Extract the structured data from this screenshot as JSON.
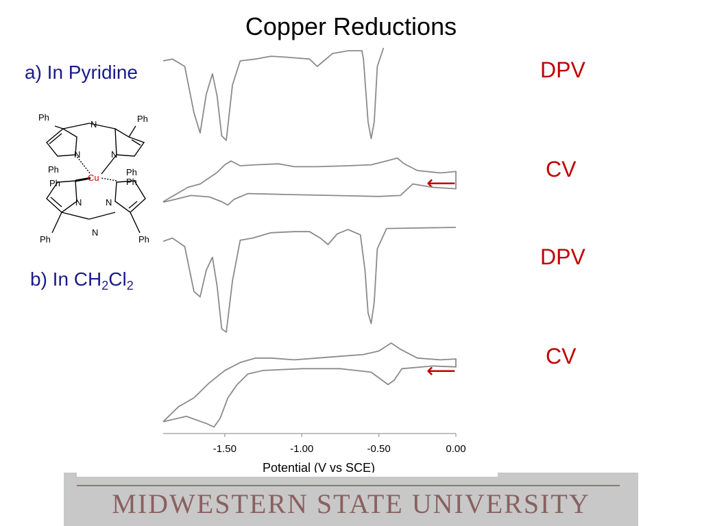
{
  "slide": {
    "title": "Copper Reductions",
    "cond_a": "a) In Pyridine",
    "cond_b_prefix": "b) In CH",
    "cond_b_sub1": "2",
    "cond_b_mid": "Cl",
    "cond_b_sub2": "2",
    "footer": "MIDWESTERN STATE UNIVERSITY"
  },
  "labels": {
    "dpv": "DPV",
    "cv": "CV",
    "arrow": "⟵"
  },
  "molecule": {
    "ph": "Ph",
    "n": "N",
    "cu": "Cu",
    "cu_color": "#cc0000"
  },
  "colors": {
    "trace": "#8a8a8a",
    "technique_label": "#c00000",
    "condition_label": "#1a1a8c"
  },
  "chart_data": {
    "type": "line",
    "xlabel": "Potential (V vs SCE)",
    "ylabel": "",
    "xlim": [
      -1.9,
      0.0
    ],
    "x_ticks": [
      -1.5,
      -1.0,
      -0.5,
      0.0
    ],
    "x_tick_labels": [
      "-1.50",
      "-1.00",
      "-0.50",
      "0.00"
    ],
    "panels": [
      {
        "condition": "a) In Pyridine",
        "technique": "DPV",
        "points": [
          [
            -1.9,
            0.86
          ],
          [
            -1.84,
            0.88
          ],
          [
            -1.76,
            0.8
          ],
          [
            -1.7,
            0.3
          ],
          [
            -1.66,
            0.08
          ],
          [
            -1.62,
            0.5
          ],
          [
            -1.58,
            0.72
          ],
          [
            -1.55,
            0.48
          ],
          [
            -1.52,
            0.05
          ],
          [
            -1.49,
            0.0
          ],
          [
            -1.45,
            0.6
          ],
          [
            -1.4,
            0.86
          ],
          [
            -1.3,
            0.88
          ],
          [
            -1.2,
            0.91
          ],
          [
            -1.1,
            0.9
          ],
          [
            -0.95,
            0.88
          ],
          [
            -0.9,
            0.8
          ],
          [
            -0.8,
            0.94
          ],
          [
            -0.7,
            0.97
          ],
          [
            -0.61,
            0.97
          ],
          [
            -0.6,
            0.88
          ],
          [
            -0.57,
            0.2
          ],
          [
            -0.55,
            0.02
          ],
          [
            -0.53,
            0.2
          ],
          [
            -0.51,
            0.8
          ],
          [
            -0.47,
            1.0
          ]
        ]
      },
      {
        "condition": "a) In Pyridine",
        "technique": "CV",
        "points": [
          [
            -1.9,
            0.05
          ],
          [
            -1.82,
            0.2
          ],
          [
            -1.74,
            0.35
          ],
          [
            -1.66,
            0.42
          ],
          [
            -1.6,
            0.55
          ],
          [
            -1.55,
            0.66
          ],
          [
            -1.5,
            0.82
          ],
          [
            -1.46,
            0.9
          ],
          [
            -1.4,
            0.8
          ],
          [
            -1.3,
            0.82
          ],
          [
            -1.15,
            0.84
          ],
          [
            -1.05,
            0.78
          ],
          [
            -0.9,
            0.78
          ],
          [
            -0.7,
            0.8
          ],
          [
            -0.55,
            0.82
          ],
          [
            -0.45,
            0.9
          ],
          [
            -0.38,
            0.96
          ],
          [
            -0.34,
            0.85
          ],
          [
            -0.25,
            0.7
          ],
          [
            -0.1,
            0.65
          ],
          [
            0.0,
            0.68
          ],
          [
            0.0,
            0.32
          ],
          [
            -0.15,
            0.35
          ],
          [
            -0.28,
            0.42
          ],
          [
            -0.32,
            0.3
          ],
          [
            -0.36,
            0.18
          ],
          [
            -0.5,
            0.16
          ],
          [
            -0.8,
            0.18
          ],
          [
            -1.1,
            0.2
          ],
          [
            -1.35,
            0.22
          ],
          [
            -1.44,
            0.1
          ],
          [
            -1.48,
            -0.02
          ],
          [
            -1.52,
            0.05
          ],
          [
            -1.6,
            0.15
          ],
          [
            -1.72,
            0.18
          ],
          [
            -1.82,
            0.1
          ],
          [
            -1.9,
            0.04
          ]
        ]
      },
      {
        "condition": "b) In CH2Cl2",
        "technique": "DPV",
        "points": [
          [
            -1.9,
            0.87
          ],
          [
            -1.84,
            0.9
          ],
          [
            -1.76,
            0.82
          ],
          [
            -1.7,
            0.4
          ],
          [
            -1.66,
            0.35
          ],
          [
            -1.62,
            0.6
          ],
          [
            -1.58,
            0.72
          ],
          [
            -1.55,
            0.45
          ],
          [
            -1.52,
            0.05
          ],
          [
            -1.49,
            0.02
          ],
          [
            -1.45,
            0.5
          ],
          [
            -1.4,
            0.88
          ],
          [
            -1.32,
            0.9
          ],
          [
            -1.2,
            0.95
          ],
          [
            -1.05,
            0.96
          ],
          [
            -0.95,
            0.96
          ],
          [
            -0.88,
            0.9
          ],
          [
            -0.83,
            0.84
          ],
          [
            -0.77,
            0.94
          ],
          [
            -0.7,
            0.98
          ],
          [
            -0.62,
            0.93
          ],
          [
            -0.59,
            0.6
          ],
          [
            -0.57,
            0.2
          ],
          [
            -0.55,
            0.1
          ],
          [
            -0.53,
            0.3
          ],
          [
            -0.51,
            0.8
          ],
          [
            -0.45,
            0.99
          ],
          [
            0.0,
            1.0
          ]
        ]
      },
      {
        "condition": "b) In CH2Cl2",
        "technique": "CV",
        "points": [
          [
            -1.9,
            0.08
          ],
          [
            -1.8,
            0.25
          ],
          [
            -1.7,
            0.35
          ],
          [
            -1.6,
            0.52
          ],
          [
            -1.5,
            0.66
          ],
          [
            -1.4,
            0.75
          ],
          [
            -1.3,
            0.8
          ],
          [
            -1.2,
            0.8
          ],
          [
            -1.05,
            0.78
          ],
          [
            -0.9,
            0.8
          ],
          [
            -0.75,
            0.82
          ],
          [
            -0.6,
            0.84
          ],
          [
            -0.5,
            0.88
          ],
          [
            -0.42,
            0.97
          ],
          [
            -0.36,
            0.9
          ],
          [
            -0.25,
            0.8
          ],
          [
            -0.1,
            0.78
          ],
          [
            0.0,
            0.79
          ],
          [
            0.0,
            0.7
          ],
          [
            -0.15,
            0.71
          ],
          [
            -0.35,
            0.68
          ],
          [
            -0.4,
            0.55
          ],
          [
            -0.44,
            0.5
          ],
          [
            -0.55,
            0.64
          ],
          [
            -0.75,
            0.68
          ],
          [
            -1.0,
            0.68
          ],
          [
            -1.25,
            0.66
          ],
          [
            -1.35,
            0.62
          ],
          [
            -1.42,
            0.5
          ],
          [
            -1.48,
            0.35
          ],
          [
            -1.53,
            0.12
          ],
          [
            -1.57,
            0.02
          ],
          [
            -1.62,
            0.06
          ],
          [
            -1.75,
            0.14
          ],
          [
            -1.85,
            0.1
          ],
          [
            -1.9,
            0.08
          ]
        ]
      }
    ]
  }
}
